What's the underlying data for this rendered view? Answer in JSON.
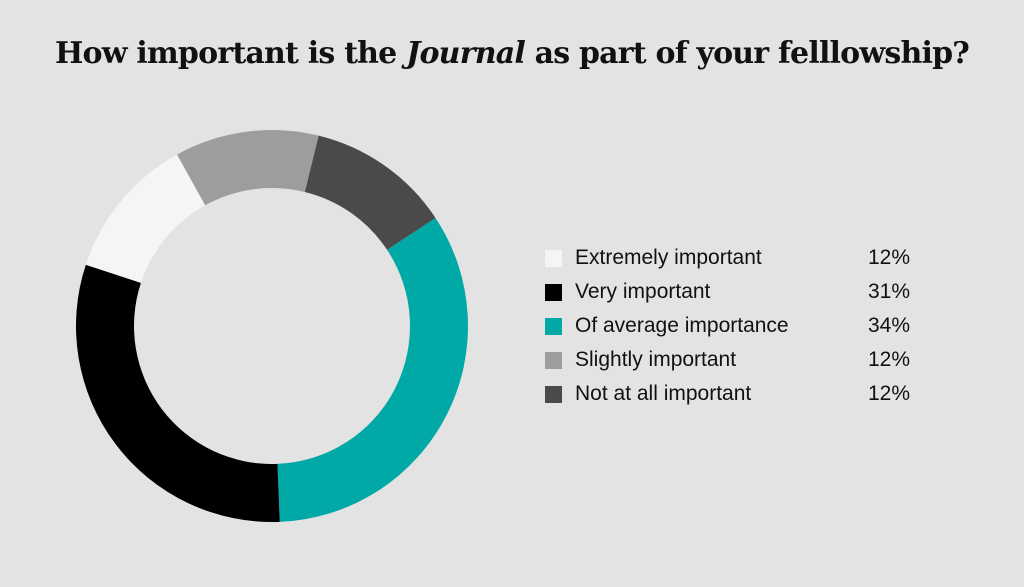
{
  "title": {
    "before": "How important is the ",
    "emphasis": "Journal",
    "after": " as part of your felllowship?"
  },
  "chart_data": {
    "type": "pie",
    "categories": [
      "Extremely important",
      "Very important",
      "Of average importance",
      "Slightly important",
      "Not at all important"
    ],
    "values": [
      12,
      31,
      34,
      12,
      12
    ],
    "value_labels": [
      "12%",
      "31%",
      "34%",
      "12%",
      "12%"
    ],
    "colors": [
      "#f5f5f5",
      "#000000",
      "#00a9a5",
      "#9d9d9c",
      "#4a4a4a"
    ],
    "draw_order": [
      3,
      4,
      2,
      1,
      0
    ],
    "start_angle_deg": -29,
    "donut": true,
    "legend_position": "right"
  }
}
